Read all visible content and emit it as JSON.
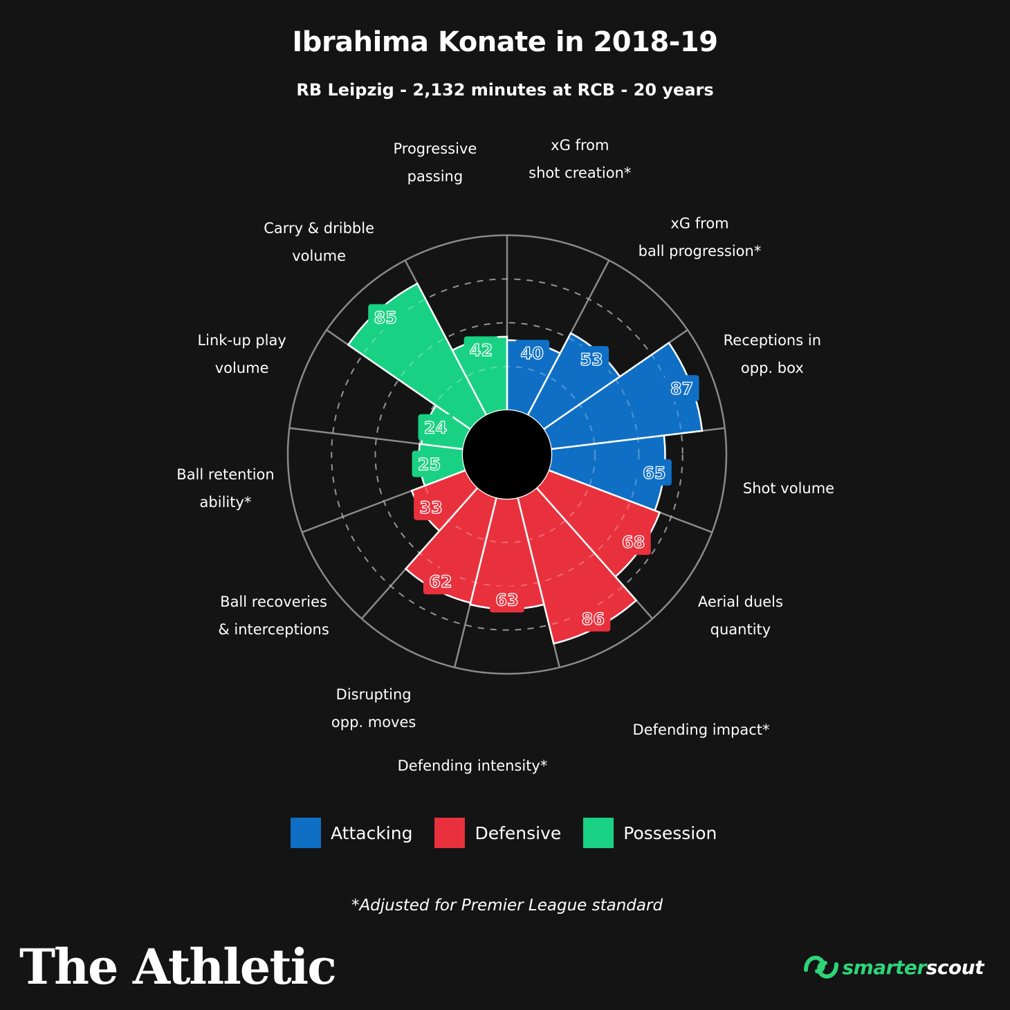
{
  "title": "Ibrahima Konate in 2018-19",
  "subtitle": "RB Leipzig - 2,132 minutes at RCB - 20 years",
  "colors": {
    "Attacking": "#0f6fc5",
    "Defensive": "#e8313d",
    "Possession": "#19d183"
  },
  "chart_data": {
    "type": "polar-bar",
    "ylim": [
      0,
      100
    ],
    "categories": [
      "xG from\nshot creation*",
      "xG from\nball progression*",
      "Receptions in\nopp. box",
      "Shot volume",
      "Aerial duels\nquantity",
      "Defending impact*",
      "Defending intensity*",
      "Disrupting\nopp. moves",
      "Ball recoveries\n& interceptions",
      "Ball retention\nability*",
      "Link-up play\nvolume",
      "Carry & dribble\nvolume",
      "Progressive\npassing"
    ],
    "values": [
      40,
      53,
      87,
      65,
      68,
      86,
      63,
      62,
      33,
      25,
      24,
      85,
      42
    ],
    "groups": [
      "Attacking",
      "Attacking",
      "Attacking",
      "Attacking",
      "Defensive",
      "Defensive",
      "Defensive",
      "Defensive",
      "Defensive",
      "Possession",
      "Possession",
      "Possession",
      "Possession"
    ]
  },
  "legend": [
    {
      "label": "Attacking",
      "color": "#0f6fc5"
    },
    {
      "label": "Defensive",
      "color": "#e8313d"
    },
    {
      "label": "Possession",
      "color": "#19d183"
    }
  ],
  "footnote": "*Adjusted for Premier League standard",
  "brand": "The Athletic",
  "scout": {
    "part1": "smarter",
    "part2": "scout"
  }
}
